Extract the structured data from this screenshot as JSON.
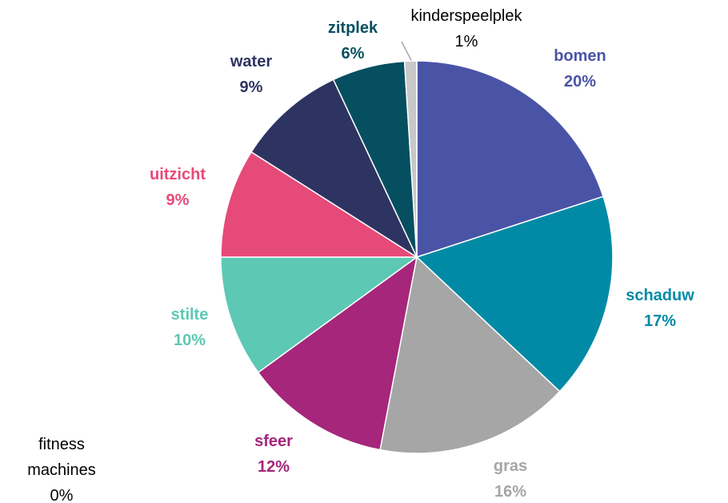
{
  "chart_data": {
    "type": "pie",
    "categories": [
      "bomen",
      "schaduw",
      "gras",
      "sfeer",
      "stilte",
      "uitzicht",
      "water",
      "zitplek",
      "kinderspeelplek",
      "fitness machines"
    ],
    "values": [
      20,
      17,
      16,
      12,
      10,
      9,
      9,
      6,
      1,
      0
    ],
    "value_labels": [
      "20%",
      "17%",
      "16%",
      "12%",
      "10%",
      "9%",
      "9%",
      "6%",
      "1%",
      "0%"
    ],
    "colors": [
      "#4a54a6",
      "#008aa6",
      "#a6a6a6",
      "#a5267a",
      "#5dc8b4",
      "#e64a78",
      "#2e3461",
      "#064f60",
      "#c8c8c8",
      "#7f7f7f"
    ],
    "label_colors": [
      "#4a54a6",
      "#008aa6",
      "#a6a6a6",
      "#a5267a",
      "#5dc8b4",
      "#e64a78",
      "#2e3461",
      "#064f60",
      "#000000",
      "#000000"
    ]
  }
}
